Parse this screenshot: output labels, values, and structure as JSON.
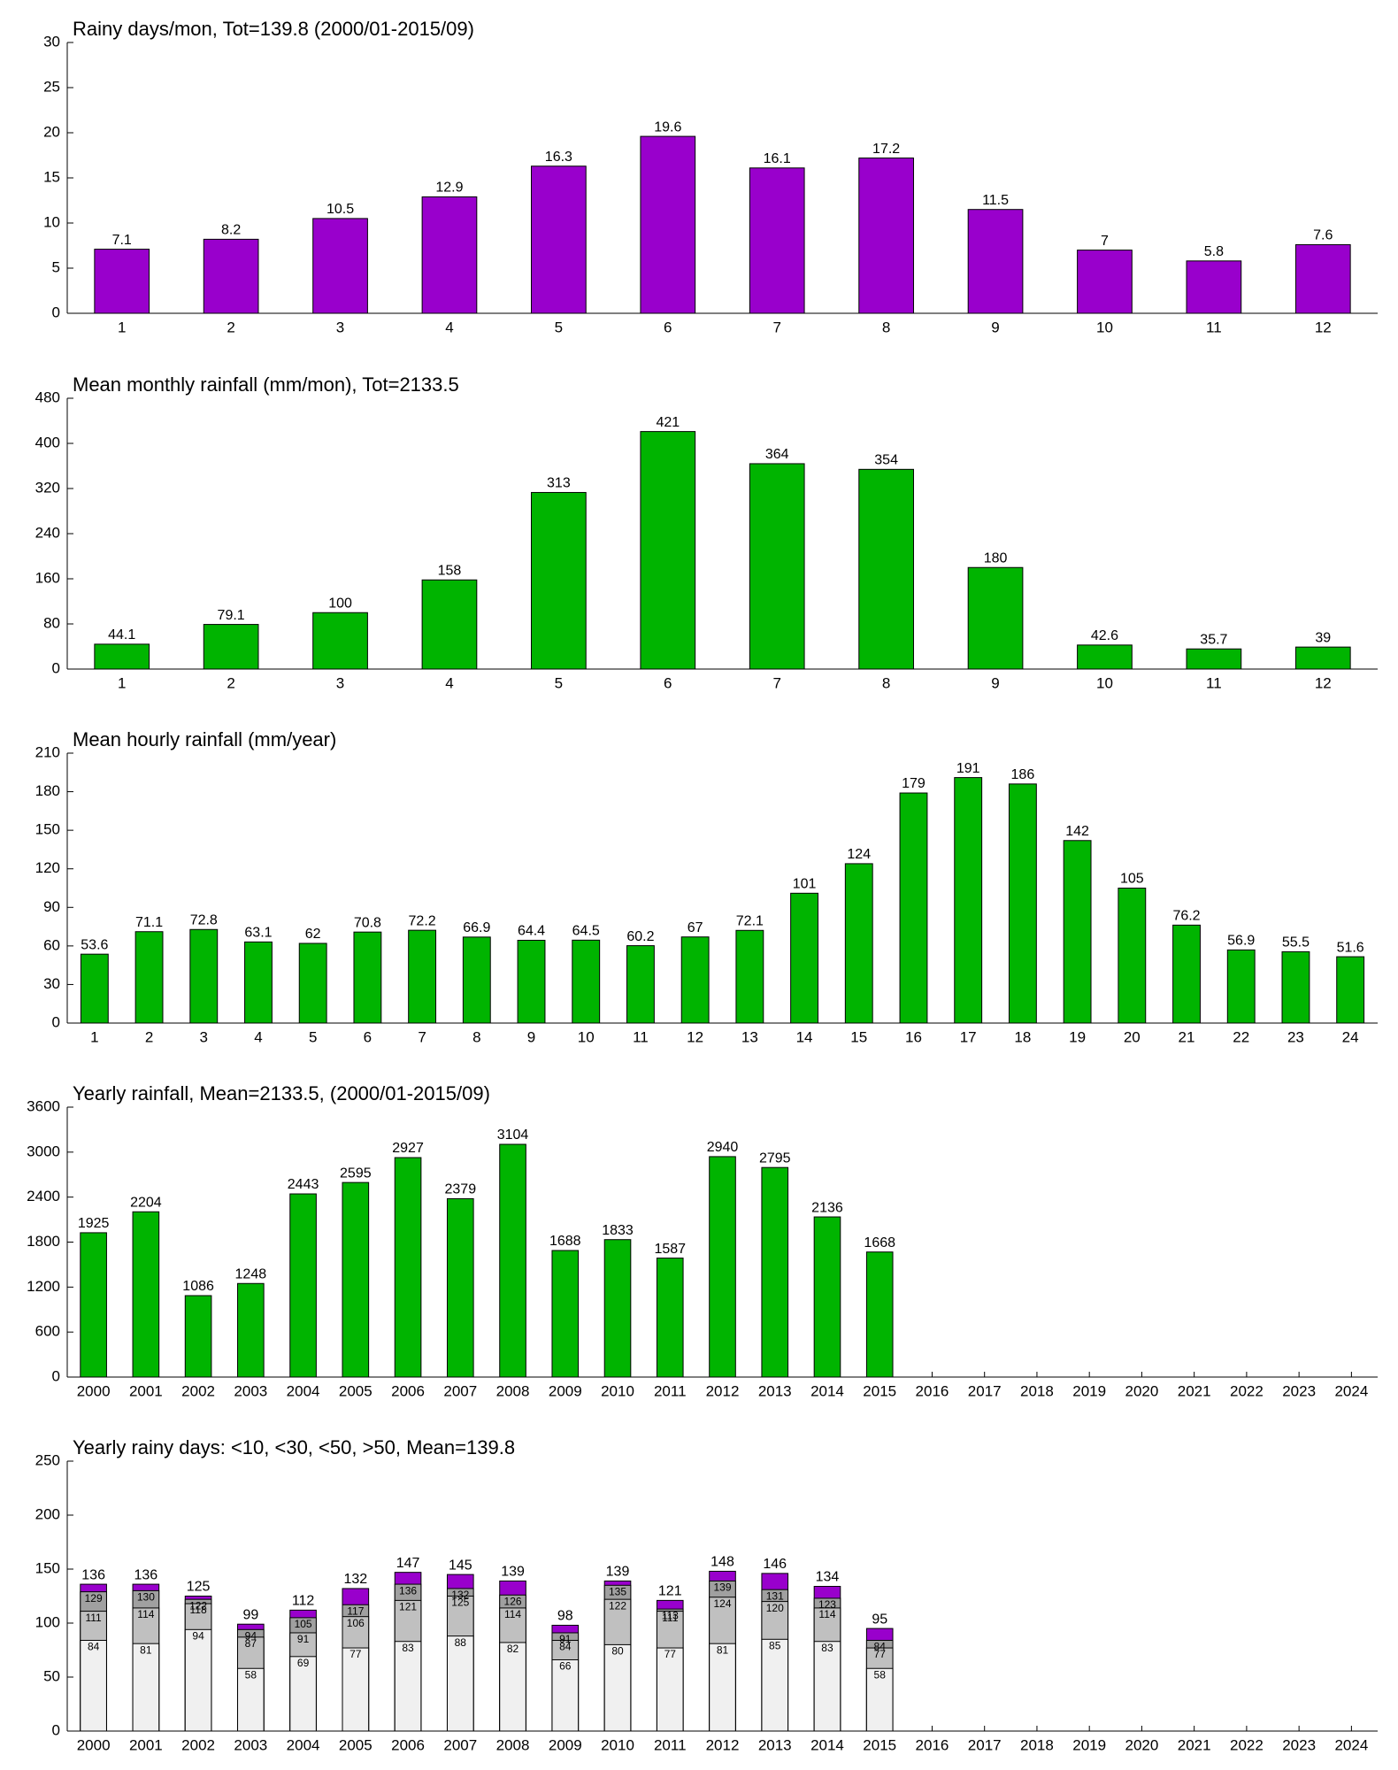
{
  "chart_data": [
    {
      "type": "bar",
      "title": "Rainy days/mon, Tot=139.8 (2000/01-2015/09)",
      "categories": [
        "1",
        "2",
        "3",
        "4",
        "5",
        "6",
        "7",
        "8",
        "9",
        "10",
        "11",
        "12"
      ],
      "values": [
        7.1,
        8.2,
        10.5,
        12.9,
        16.3,
        19.6,
        16.1,
        17.2,
        11.5,
        7,
        5.8,
        7.6
      ],
      "color": "#9900cc",
      "ylim": [
        0,
        30
      ],
      "yticks": [
        0,
        5,
        10,
        15,
        20,
        25,
        30
      ]
    },
    {
      "type": "bar",
      "title": "Mean monthly rainfall (mm/mon), Tot=2133.5",
      "categories": [
        "1",
        "2",
        "3",
        "4",
        "5",
        "6",
        "7",
        "8",
        "9",
        "10",
        "11",
        "12"
      ],
      "values": [
        44.1,
        79.1,
        100,
        158,
        313,
        421,
        364,
        354,
        180,
        42.6,
        35.7,
        39
      ],
      "color": "#00b400",
      "ylim": [
        0,
        480
      ],
      "yticks": [
        0,
        80,
        160,
        240,
        320,
        400,
        480
      ]
    },
    {
      "type": "bar",
      "title": "Mean hourly rainfall (mm/year)",
      "categories": [
        "1",
        "2",
        "3",
        "4",
        "5",
        "6",
        "7",
        "8",
        "9",
        "10",
        "11",
        "12",
        "13",
        "14",
        "15",
        "16",
        "17",
        "18",
        "19",
        "20",
        "21",
        "22",
        "23",
        "24"
      ],
      "values": [
        53.6,
        71.1,
        72.8,
        63.1,
        62,
        70.8,
        72.2,
        66.9,
        64.4,
        64.5,
        60.2,
        67,
        72.1,
        101,
        124,
        179,
        191,
        186,
        142,
        105,
        76.2,
        56.9,
        55.5,
        51.6
      ],
      "color": "#00b400",
      "ylim": [
        0,
        210
      ],
      "yticks": [
        0,
        30,
        60,
        90,
        120,
        150,
        180,
        210
      ]
    },
    {
      "type": "bar",
      "title": "Yearly rainfall, Mean=2133.5, (2000/01-2015/09)",
      "categories": [
        "2000",
        "2001",
        "2002",
        "2003",
        "2004",
        "2005",
        "2006",
        "2007",
        "2008",
        "2009",
        "2010",
        "2011",
        "2012",
        "2013",
        "2014",
        "2015",
        "2016",
        "2017",
        "2018",
        "2019",
        "2020",
        "2021",
        "2022",
        "2023",
        "2024"
      ],
      "values": [
        1925,
        2204,
        1086,
        1248,
        2443,
        2595,
        2927,
        2379,
        3104,
        1688,
        1833,
        1587,
        2940,
        2795,
        2136,
        1668,
        null,
        null,
        null,
        null,
        null,
        null,
        null,
        null,
        null
      ],
      "color": "#00b400",
      "ylim": [
        0,
        3600
      ],
      "yticks": [
        0,
        600,
        1200,
        1800,
        2400,
        3000,
        3600
      ]
    },
    {
      "type": "overlay_bar",
      "title": "Yearly rainy days: <10, <30, <50, >50, Mean=139.8",
      "categories": [
        "2000",
        "2001",
        "2002",
        "2003",
        "2004",
        "2005",
        "2006",
        "2007",
        "2008",
        "2009",
        "2010",
        "2011",
        "2012",
        "2013",
        "2014",
        "2015",
        "2016",
        "2017",
        "2018",
        "2019",
        "2020",
        "2021",
        "2022",
        "2023",
        "2024"
      ],
      "series": [
        {
          "color": "#f0f0f0",
          "values": [
            84,
            81,
            94,
            58,
            69,
            77,
            83,
            88,
            82,
            66,
            80,
            77,
            81,
            85,
            83,
            58,
            null,
            null,
            null,
            null,
            null,
            null,
            null,
            null,
            null
          ]
        },
        {
          "color": "#c0c0c0",
          "values": [
            111,
            114,
            118,
            87,
            91,
            106,
            121,
            125,
            114,
            84,
            122,
            111,
            124,
            120,
            114,
            77,
            null,
            null,
            null,
            null,
            null,
            null,
            null,
            null,
            null
          ]
        },
        {
          "color": "#a0a0a0",
          "values": [
            129,
            130,
            122,
            94,
            105,
            117,
            136,
            132,
            126,
            91,
            135,
            113,
            139,
            131,
            123,
            84,
            null,
            null,
            null,
            null,
            null,
            null,
            null,
            null,
            null
          ]
        },
        {
          "color": "#9900cc",
          "values": [
            136,
            136,
            125,
            99,
            112,
            132,
            147,
            145,
            139,
            98,
            139,
            121,
            148,
            146,
            134,
            95,
            null,
            null,
            null,
            null,
            null,
            null,
            null,
            null,
            null
          ]
        }
      ],
      "ylim": [
        0,
        250
      ],
      "yticks": [
        0,
        50,
        100,
        150,
        200,
        250
      ]
    }
  ]
}
